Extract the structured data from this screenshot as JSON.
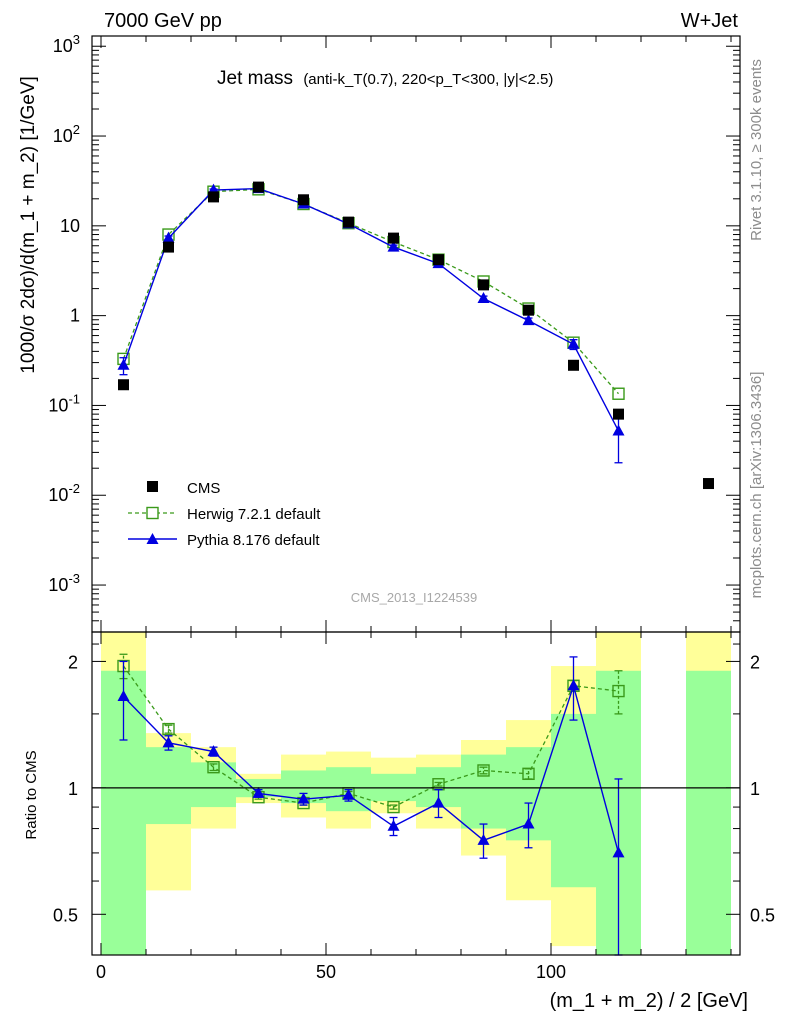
{
  "header": {
    "left": "7000 GeV pp",
    "right": "W+Jet"
  },
  "title": {
    "main": "Jet mass",
    "detail": "(anti-k_T(0.7), 220<p_T<300, |y|<2.5)"
  },
  "side_labels": {
    "rivet": "Rivet 3.1.10, ≥ 300k events",
    "mcplots": "mcplots.cern.ch [arXiv:1306.3436]"
  },
  "watermark": "CMS_2013_I1224539",
  "axes": {
    "xlabel": "(m_1 + m_2) / 2 [GeV]",
    "ylabel_top": "1000/σ 2dσ)/d(m_1 + m_2) [1/GeV]",
    "ylabel_ratio": "Ratio to CMS",
    "x_ticks": [
      "0",
      "50",
      "100"
    ],
    "y_ticks_top": [
      "10^-3",
      "10^-2",
      "10^-1",
      "1",
      "10",
      "10^2",
      "10^3"
    ],
    "y_ticks_ratio": [
      "0.5",
      "1",
      "2"
    ]
  },
  "chart_data": [
    {
      "type": "scatter",
      "panel": "main",
      "xlim": [
        -2,
        142
      ],
      "ylim": [
        0.0003,
        1300
      ],
      "yscale": "log",
      "x": [
        5,
        15,
        25,
        35,
        45,
        55,
        65,
        75,
        85,
        95,
        105,
        115,
        135
      ],
      "legend_placement": "bottom-left",
      "series": [
        {
          "name": "CMS",
          "color": "#000000",
          "marker": "filled-square",
          "values": [
            0.17,
            5.8,
            21,
            27,
            19.5,
            11,
            7.3,
            4.2,
            2.2,
            1.15,
            0.28,
            0.08,
            0.0135
          ]
        },
        {
          "name": "Herwig 7.2.1 default",
          "color": "#3a9a1a",
          "marker": "open-square",
          "line": "dashed",
          "values": [
            0.33,
            8.0,
            24,
            25.5,
            17.5,
            10.7,
            6.6,
            4.2,
            2.4,
            1.2,
            0.5,
            0.135
          ]
        },
        {
          "name": "Pythia 8.176 default",
          "color": "#0000e0",
          "marker": "filled-triangle",
          "line": "solid",
          "values": [
            0.28,
            7.3,
            25,
            26,
            17.5,
            10.5,
            5.8,
            3.8,
            1.55,
            0.88,
            0.48,
            0.052
          ],
          "err_low": [
            0.22,
            6.9,
            24.3,
            25.4,
            17,
            10.2,
            5.5,
            3.55,
            1.45,
            0.82,
            0.42,
            0.023
          ],
          "err_high": [
            0.34,
            7.7,
            25.7,
            26.6,
            18,
            10.8,
            6.1,
            4.05,
            1.65,
            0.94,
            0.54,
            0.08
          ]
        }
      ]
    },
    {
      "type": "scatter",
      "panel": "ratio",
      "xlim": [
        -2,
        142
      ],
      "ylim": [
        0.4,
        2.35
      ],
      "yscale": "log",
      "reference_line": 1,
      "x": [
        5,
        15,
        25,
        35,
        45,
        55,
        65,
        75,
        85,
        95,
        105,
        115
      ],
      "bands": [
        {
          "x0": 0,
          "x1": 10,
          "green": [
            0.4,
            1.9
          ],
          "yellow": [
            0.4,
            2.35
          ]
        },
        {
          "x0": 10,
          "x1": 20,
          "green": [
            0.82,
            1.25
          ],
          "yellow": [
            0.57,
            1.35
          ]
        },
        {
          "x0": 20,
          "x1": 30,
          "green": [
            0.9,
            1.15
          ],
          "yellow": [
            0.8,
            1.25
          ]
        },
        {
          "x0": 30,
          "x1": 40,
          "green": [
            0.95,
            1.05
          ],
          "yellow": [
            0.92,
            1.08
          ]
        },
        {
          "x0": 40,
          "x1": 50,
          "green": [
            0.92,
            1.1
          ],
          "yellow": [
            0.85,
            1.2
          ]
        },
        {
          "x0": 50,
          "x1": 60,
          "green": [
            0.88,
            1.12
          ],
          "yellow": [
            0.8,
            1.22
          ]
        },
        {
          "x0": 60,
          "x1": 70,
          "green": [
            0.93,
            1.08
          ],
          "yellow": [
            0.87,
            1.18
          ]
        },
        {
          "x0": 70,
          "x1": 80,
          "green": [
            0.9,
            1.12
          ],
          "yellow": [
            0.8,
            1.2
          ]
        },
        {
          "x0": 80,
          "x1": 90,
          "green": [
            0.8,
            1.2
          ],
          "yellow": [
            0.69,
            1.3
          ]
        },
        {
          "x0": 90,
          "x1": 100,
          "green": [
            0.75,
            1.25
          ],
          "yellow": [
            0.54,
            1.45
          ]
        },
        {
          "x0": 100,
          "x1": 110,
          "green": [
            0.58,
            1.5
          ],
          "yellow": [
            0.42,
            1.95
          ]
        },
        {
          "x0": 110,
          "x1": 120,
          "green": [
            0.4,
            1.9
          ],
          "yellow": [
            0.4,
            2.35
          ]
        },
        {
          "x0": 130,
          "x1": 140,
          "green": [
            0.4,
            1.9
          ],
          "yellow": [
            0.4,
            2.35
          ]
        }
      ],
      "series": [
        {
          "name": "Herwig 7.2.1 default",
          "color": "#3a9a1a",
          "marker": "open-square",
          "line": "dashed",
          "values": [
            1.95,
            1.38,
            1.12,
            0.95,
            0.92,
            0.97,
            0.9,
            1.02,
            1.1,
            1.08,
            1.75,
            1.7
          ],
          "err_low": [
            1.82,
            1.35,
            1.1,
            0.94,
            0.91,
            0.96,
            0.89,
            1.01,
            1.08,
            1.05,
            1.7,
            1.5
          ],
          "err_high": [
            2.08,
            1.41,
            1.14,
            0.96,
            0.93,
            0.98,
            0.91,
            1.03,
            1.12,
            1.11,
            1.8,
            1.9
          ]
        },
        {
          "name": "Pythia 8.176 default",
          "color": "#0000e0",
          "marker": "filled-triangle",
          "line": "solid",
          "values": [
            1.65,
            1.28,
            1.22,
            0.97,
            0.94,
            0.96,
            0.81,
            0.92,
            0.75,
            0.82,
            1.75,
            0.7
          ],
          "err_low": [
            1.3,
            1.23,
            1.19,
            0.95,
            0.91,
            0.93,
            0.77,
            0.85,
            0.68,
            0.72,
            1.45,
            0.4
          ],
          "err_high": [
            2.0,
            1.33,
            1.25,
            0.99,
            0.97,
            0.99,
            0.85,
            0.99,
            0.82,
            0.92,
            2.05,
            1.05
          ]
        }
      ]
    }
  ]
}
